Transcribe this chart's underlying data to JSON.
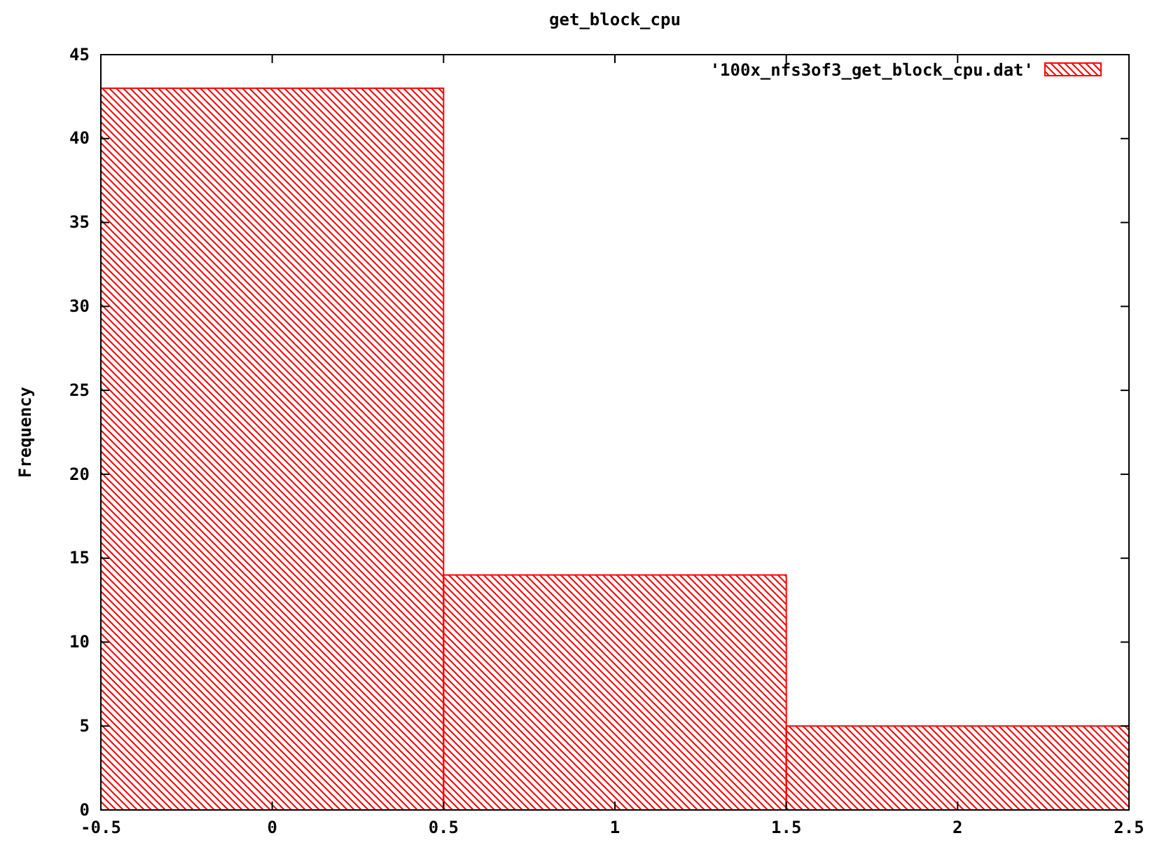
{
  "chart_data": {
    "type": "histogram",
    "title": "get_block_cpu",
    "ylabel": "Frequency",
    "bins": [
      -0.5,
      0.5,
      1.5,
      2.5
    ],
    "series": [
      {
        "name": "'100x_nfs3of3_get_block_cpu.dat'",
        "color": "#ff0000",
        "values": [
          43,
          14,
          5
        ]
      }
    ],
    "xlim": [
      -0.5,
      2.5
    ],
    "xticks": [
      {
        "value": -0.5,
        "label": "-0.5"
      },
      0,
      0.5,
      1,
      1.5,
      2,
      2.5
    ],
    "ylim": [
      0,
      45
    ],
    "yticks": [
      0,
      5,
      10,
      15,
      20,
      25,
      30,
      35,
      40,
      45
    ],
    "legend": "top right"
  }
}
